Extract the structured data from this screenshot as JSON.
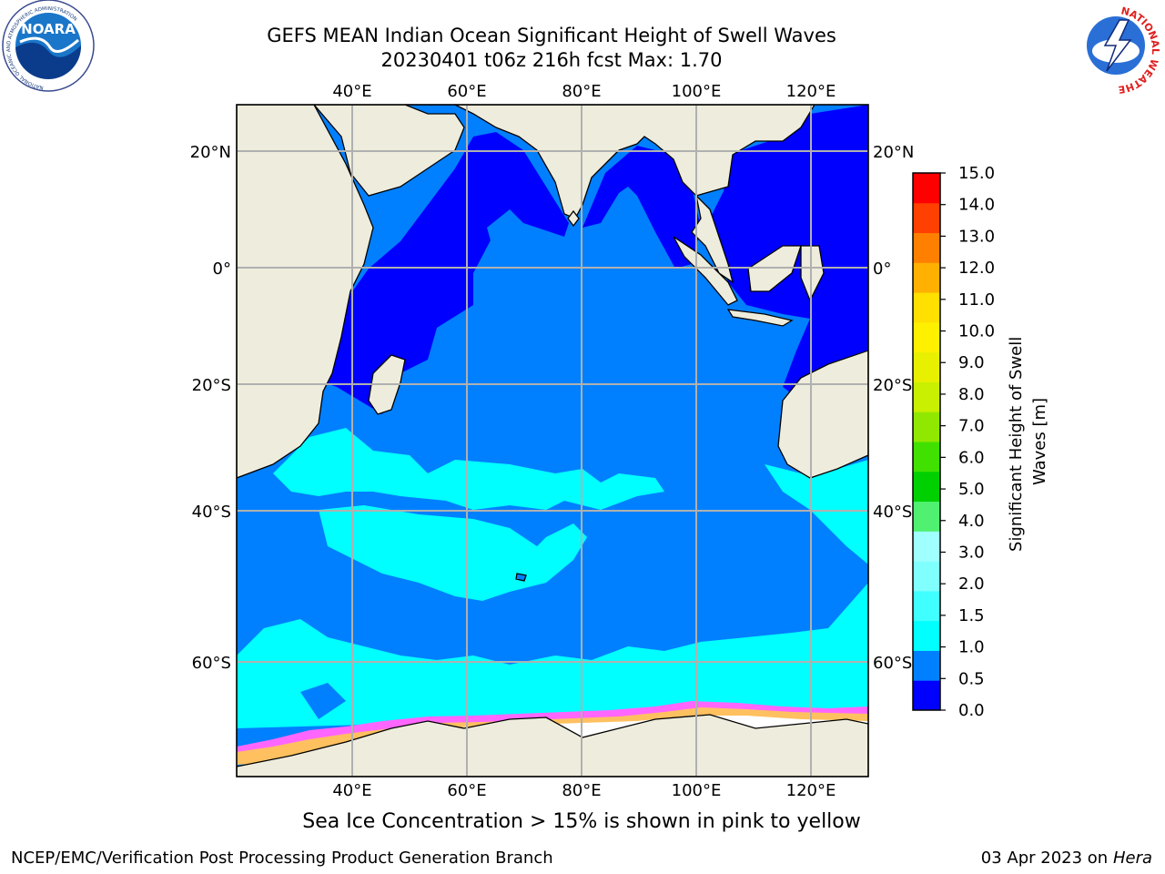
{
  "title": {
    "line1": "GEFS MEAN Indian Ocean Significant Height of Swell Waves",
    "line2": "20230401 t06z 216h fcst   Max: 1.70"
  },
  "map": {
    "lon_range": [
      20,
      130
    ],
    "lat_range": [
      -74,
      27
    ],
    "lon_ticks": [
      "40°E",
      "60°E",
      "80°E",
      "100°E",
      "120°E"
    ],
    "lat_ticks": [
      "20°N",
      "0°",
      "20°S",
      "40°S",
      "60°S"
    ],
    "gridlines": true,
    "land_color": "#eeecdc",
    "coastline_color": "#000000"
  },
  "colorbar": {
    "label": "Significant Height of Swell Waves [m]",
    "ticks": [
      "0.0",
      "0.5",
      "1.0",
      "1.5",
      "2.0",
      "3.0",
      "4.0",
      "5.0",
      "6.0",
      "7.0",
      "8.0",
      "9.0",
      "10.0",
      "11.0",
      "12.0",
      "13.0",
      "14.0",
      "15.0"
    ],
    "colors": [
      "#0000ff",
      "#0080ff",
      "#00ffff",
      "#40ffff",
      "#80ffff",
      "#a0ffff",
      "#50f070",
      "#00d000",
      "#40e000",
      "#90e800",
      "#c8f000",
      "#e8f000",
      "#fff000",
      "#ffe000",
      "#ffb000",
      "#ff8000",
      "#ff4000",
      "#ff0000"
    ]
  },
  "sea_ice_note": "Sea Ice Concentration > 15% is shown in pink to yellow",
  "footer": {
    "left": "NCEP/EMC/Verification Post Processing Product Generation Branch",
    "right_prefix": "03 Apr 2023 on ",
    "right_host": "Hera"
  },
  "logos": {
    "left": {
      "name": "NOARA",
      "ring_text": "NATIONAL OCEANIC AND ATMOSPHERIC ADMINISTRATION"
    },
    "right": {
      "ring_text": "NATIONAL WEATHER SERVICE"
    }
  }
}
